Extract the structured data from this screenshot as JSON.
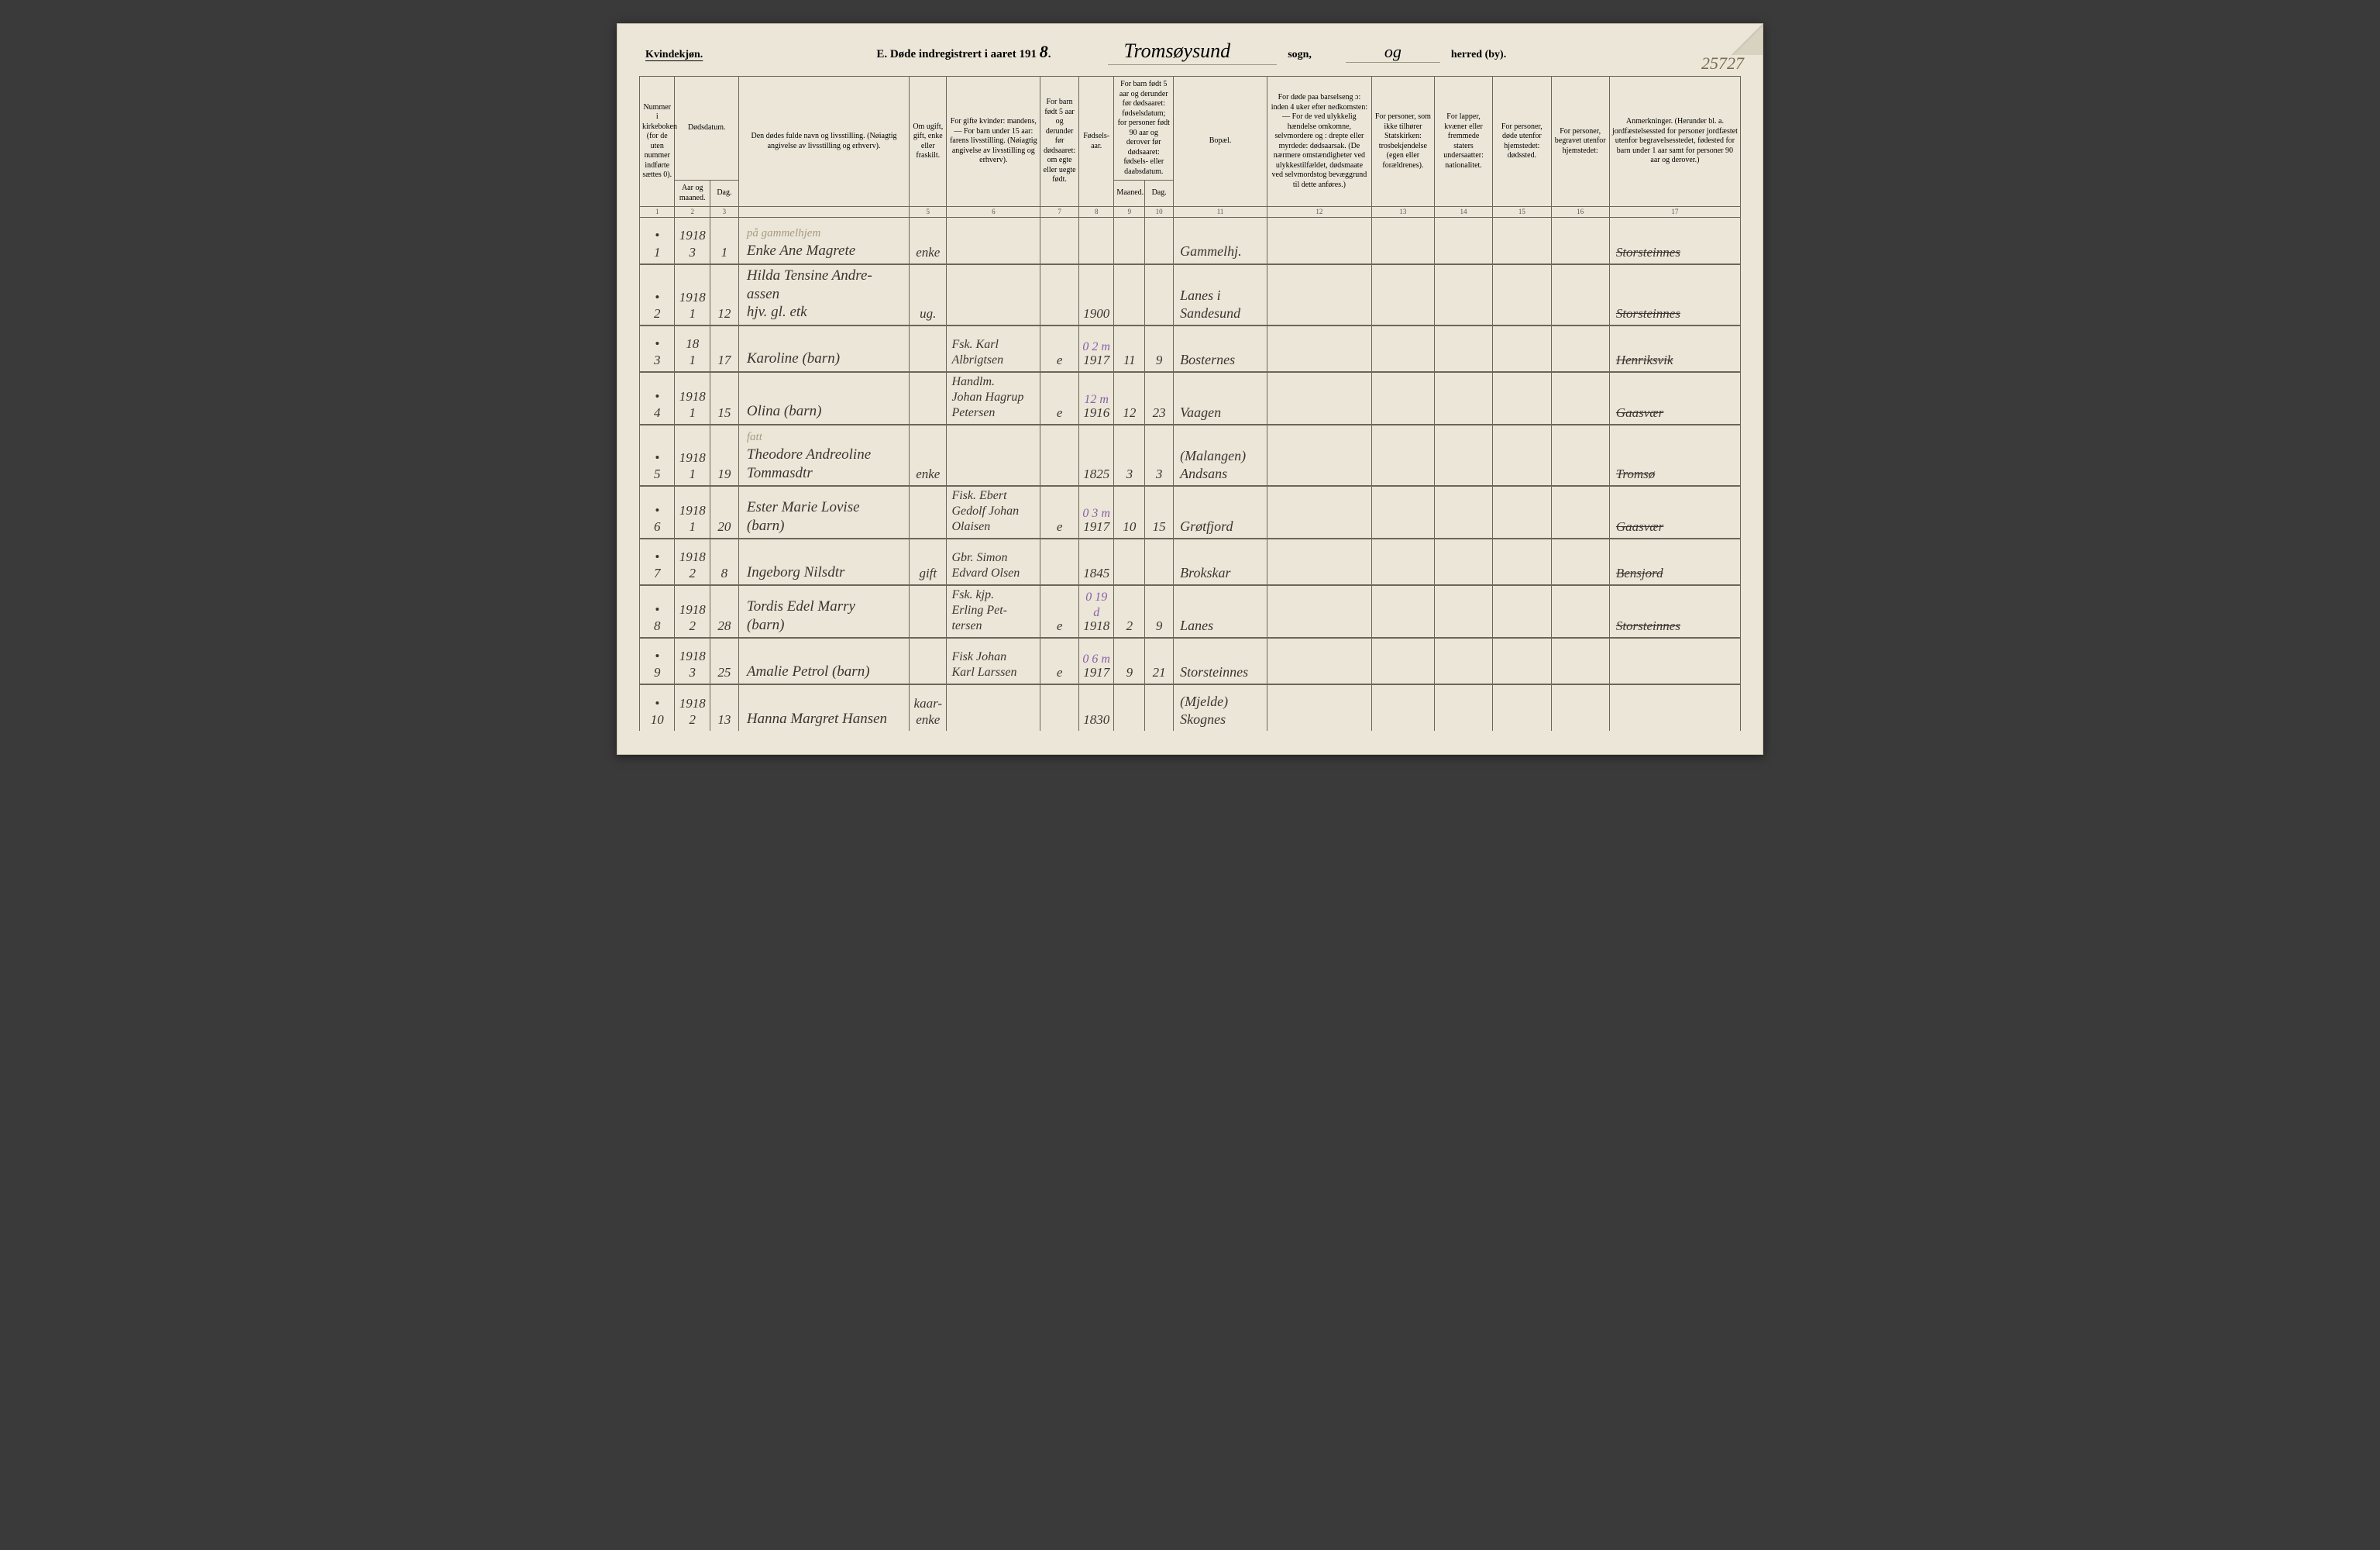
{
  "header": {
    "left_label": "Kvindekjøn.",
    "title_prefix": "E.   Døde indregistrert i aaret 191",
    "year_suffix": "8",
    "parish": "Tromsøysund",
    "sogn_label": "sogn,",
    "g": "og",
    "herred_label": "herred (by).",
    "page_number": "25727"
  },
  "columns": {
    "c1": "Nummer i kirkeboken (for de uten nummer indførte sættes 0).",
    "c2a": "Dødsdatum.",
    "c2": "Aar og maaned.",
    "c3": "Dag.",
    "c4": "Den dødes fulde navn og livsstilling. (Nøiagtig angivelse av livsstilling og erhverv).",
    "c5": "Om ugift, gift, enke eller fraskilt.",
    "c6": "For gifte kvinder: mandens, — For barn under 15 aar: farens livsstilling. (Nøiagtig angivelse av livsstilling og erhverv).",
    "c7": "For barn født 5 aar og derunder før dødsaaret: om egte eller uegte født.",
    "c8": "Fødsels-aar.",
    "c9a": "For barn født 5 aar og derunder før dødsaaret: fødselsdatum; for personer født 90 aar og derover før dødsaaret: fødsels- eller daabsdatum.",
    "c9": "Maaned.",
    "c10": "Dag.",
    "c11": "Bopæl.",
    "c12": "For døde paa barselseng ɔ: inden 4 uker efter nedkomsten: — For de ved ulykkelig hændelse omkomne, selvmordere og : drepte eller myrdede: dødsaarsak. (De nærmere omstændigheter ved ulykkestilfældet, dødsmaate ved selvmordstog bevæggrund til dette anføres.)",
    "c13": "For personer, som ikke tilhører Statskirken: trosbekjendelse (egen eller forældrenes).",
    "c14": "For lapper, kvæner eller fremmede staters undersaatter: nationalitet.",
    "c15": "For personer, døde utenfor hjemstedet: dødssted.",
    "c16": "For personer, begravet utenfor hjemstedet:",
    "c17": "Anmerkninger. (Herunder bl. a. jordfæstelsessted for personer jordfæstet utenfor begravelsesstedet, fødested for barn under 1 aar samt for personer 90 aar og derover.)"
  },
  "colnums": [
    "1",
    "2",
    "3",
    "",
    "5",
    "6",
    "7",
    "8",
    "9",
    "10",
    "11",
    "12",
    "13",
    "14",
    "15",
    "16",
    "17"
  ],
  "rows": [
    {
      "n": "1",
      "ym": "1918\n3",
      "day": "1",
      "name": "Enke Ane Magrete",
      "note_above": "på gammelhjem",
      "status": "enke",
      "spouse": "",
      "egte": "",
      "year": "",
      "m": "",
      "d": "",
      "place": "Gammelhj.",
      "cause": "",
      "rel": "",
      "nat": "",
      "ds": "",
      "bg": "",
      "remark": "Storsteinnes",
      "remark_strike": true
    },
    {
      "n": "2",
      "ym": "1918\n1",
      "day": "12",
      "name": "Hilda Tensine Andre-\nassen\nhjv. gl. etk",
      "status": "ug.",
      "spouse": "",
      "egte": "",
      "year": "1900",
      "m": "",
      "d": "",
      "place": "Lanes i\nSandesund",
      "cause": "",
      "rel": "",
      "nat": "",
      "ds": "",
      "bg": "",
      "remark": "Storsteinnes",
      "remark_strike": true
    },
    {
      "n": "3",
      "ym": "18\n1",
      "day": "17",
      "name": "Karoline (barn)",
      "status": "",
      "spouse": "Fsk. Karl\nAlbrigtsen",
      "egte": "e",
      "year": "1917",
      "purple": "0 2 m",
      "m": "11",
      "d": "9",
      "place": "Bosternes",
      "cause": "",
      "rel": "",
      "nat": "",
      "ds": "",
      "bg": "",
      "remark": "Henriksvik",
      "remark_strike": true
    },
    {
      "n": "4",
      "ym": "1918\n1",
      "day": "15",
      "name": "Olina (barn)",
      "status": "",
      "spouse": "Handlm.\nJohan Hagrup\nPetersen",
      "egte": "e",
      "year": "1916",
      "purple": "12 m",
      "m": "12",
      "d": "23",
      "place": "Vaagen",
      "cause": "",
      "rel": "",
      "nat": "",
      "ds": "",
      "bg": "",
      "remark": "Gaasvær",
      "remark_strike": true
    },
    {
      "n": "5",
      "ym": "1918\n1",
      "day": "19",
      "name": "Theodore Andreoline\nTommasdtr",
      "note_above": "fatt",
      "status": "enke",
      "spouse": "",
      "egte": "",
      "year": "1825",
      "m": "3",
      "d": "3",
      "place": "(Malangen)\nAndsans",
      "cause": "",
      "rel": "",
      "nat": "",
      "ds": "",
      "bg": "",
      "remark": "Tromsø",
      "remark_strike": true
    },
    {
      "n": "6",
      "ym": "1918\n1",
      "day": "20",
      "name": "Ester Marie Lovise\n(barn)",
      "status": "",
      "spouse": "Fisk. Ebert\nGedolf Johan\nOlaisen",
      "egte": "e",
      "year": "1917",
      "purple": "0 3 m",
      "m": "10",
      "d": "15",
      "place": "Grøtfjord",
      "cause": "",
      "rel": "",
      "nat": "",
      "ds": "",
      "bg": "",
      "remark": "Gaasvær",
      "remark_strike": true
    },
    {
      "n": "7",
      "ym": "1918\n2",
      "day": "8",
      "name": "Ingeborg Nilsdtr",
      "status": "gift",
      "spouse": "Gbr. Simon\nEdvard Olsen",
      "egte": "",
      "year": "1845",
      "m": "",
      "d": "",
      "place": "Brokskar",
      "cause": "",
      "rel": "",
      "nat": "",
      "ds": "",
      "bg": "",
      "remark": "Bensjord",
      "remark_strike": true
    },
    {
      "n": "8",
      "ym": "1918\n2",
      "day": "28",
      "name": "Tordis Edel Marry\n(barn)",
      "status": "",
      "spouse": "Fsk. kjp.\nErling Pet-\ntersen",
      "egte": "e",
      "year": "1918",
      "purple": "0 19 d",
      "m": "2",
      "d": "9",
      "place": "Lanes",
      "cause": "",
      "rel": "",
      "nat": "",
      "ds": "",
      "bg": "",
      "remark": "Storsteinnes",
      "remark_strike": true
    },
    {
      "n": "9",
      "ym": "1918\n3",
      "day": "25",
      "name": "Amalie Petrol (barn)",
      "status": "",
      "spouse": "Fisk Johan\nKarl Larssen",
      "egte": "e",
      "year": "1917",
      "purple": "0 6 m",
      "m": "9",
      "d": "21",
      "place": "Storsteinnes",
      "cause": "",
      "rel": "",
      "nat": "",
      "ds": "",
      "bg": "",
      "remark": ""
    },
    {
      "n": "10",
      "ym": "1918\n2",
      "day": "13",
      "name": "Hanna Margret Hansen",
      "status": "kaar-\nenke",
      "spouse": "",
      "egte": "",
      "year": "1830",
      "m": "",
      "d": "",
      "place": "(Mjelde)\nSkognes",
      "cause": "",
      "rel": "",
      "nat": "",
      "ds": "",
      "bg": "",
      "remark": ""
    }
  ],
  "style": {
    "paper_color": "#ebe6d8",
    "rule_color": "#6a6658",
    "ink_color": "#3a3530",
    "purple_ink": "#8a5fa8",
    "header_font_size_pt": 14,
    "body_font_size_pt": 18,
    "th_font_size_pt": 10
  }
}
